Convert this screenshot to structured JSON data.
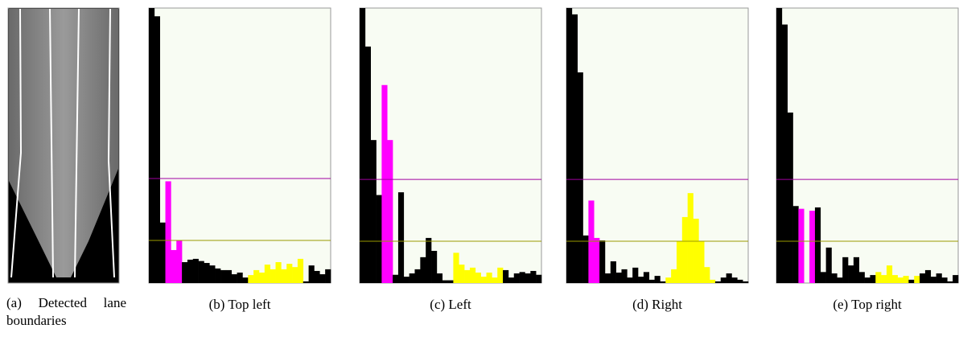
{
  "image_caption": "(a) Detected lane boundaries",
  "chart_data": [
    {
      "type": "histogram",
      "caption": "(b) Top left",
      "ylim": [
        0,
        100
      ],
      "values": [
        100,
        97,
        22,
        37,
        12,
        15.5,
        7.6,
        8.5,
        8.8,
        8,
        7.3,
        6.4,
        5.3,
        4.7,
        4.7,
        3.2,
        3.8,
        2,
        2.9,
        4.7,
        3.8,
        6.7,
        5,
        7.6,
        5,
        7,
        5.8,
        8.8,
        0.6,
        6.4,
        4.4,
        3.2,
        5
      ],
      "colors": [
        "#000000",
        "#000000",
        "#000000",
        "#ff00ff",
        "#ff00ff",
        "#ff00ff",
        "#000000",
        "#000000",
        "#000000",
        "#000000",
        "#000000",
        "#000000",
        "#000000",
        "#000000",
        "#000000",
        "#000000",
        "#000000",
        "#000000",
        "#ffff00",
        "#ffff00",
        "#ffff00",
        "#ffff00",
        "#ffff00",
        "#ffff00",
        "#ffff00",
        "#ffff00",
        "#ffff00",
        "#ffff00",
        "#000000",
        "#000000",
        "#000000",
        "#000000",
        "#000000"
      ],
      "thresholds": [
        {
          "value": 38,
          "color": "#a000a0"
        },
        {
          "value": 15.5,
          "color": "#9a9a00"
        }
      ]
    },
    {
      "type": "histogram",
      "caption": "(c) Left",
      "ylim": [
        0,
        100
      ],
      "values": [
        100,
        86,
        52,
        32,
        72,
        52,
        3,
        33,
        2.3,
        3.5,
        5,
        9.4,
        16.4,
        11.7,
        3.5,
        1,
        1,
        11,
        6.7,
        4.7,
        5.6,
        3.8,
        2.3,
        3.8,
        2,
        5.6,
        4.7,
        2,
        3.5,
        4,
        3.5,
        4.4,
        3
      ],
      "colors": [
        "#000000",
        "#000000",
        "#000000",
        "#000000",
        "#ff00ff",
        "#ff00ff",
        "#000000",
        "#000000",
        "#000000",
        "#000000",
        "#000000",
        "#000000",
        "#000000",
        "#000000",
        "#000000",
        "#000000",
        "#000000",
        "#ffff00",
        "#ffff00",
        "#ffff00",
        "#ffff00",
        "#ffff00",
        "#ffff00",
        "#ffff00",
        "#ffff00",
        "#ffff00",
        "#000000",
        "#000000",
        "#000000",
        "#000000",
        "#000000",
        "#000000",
        "#000000"
      ],
      "thresholds": [
        {
          "value": 37.7,
          "color": "#a000a0"
        },
        {
          "value": 15.2,
          "color": "#9a9a00"
        }
      ]
    },
    {
      "type": "histogram",
      "caption": "(d) Right",
      "ylim": [
        0,
        100
      ],
      "values": [
        100,
        97.7,
        76.6,
        17.3,
        30,
        16.4,
        15.5,
        3.5,
        7.9,
        3.8,
        5,
        2,
        5.6,
        2.3,
        4,
        1.2,
        2.6,
        0.6,
        2,
        5,
        15.2,
        24,
        32.7,
        23.4,
        15.2,
        5.8,
        1.2,
        0.6,
        2,
        3.5,
        2,
        1.2,
        0.6
      ],
      "colors": [
        "#000000",
        "#000000",
        "#000000",
        "#000000",
        "#ff00ff",
        "#ff00ff",
        "#000000",
        "#000000",
        "#000000",
        "#000000",
        "#000000",
        "#000000",
        "#000000",
        "#000000",
        "#000000",
        "#000000",
        "#000000",
        "#000000",
        "#ffff00",
        "#ffff00",
        "#ffff00",
        "#ffff00",
        "#ffff00",
        "#ffff00",
        "#ffff00",
        "#ffff00",
        "#ffff00",
        "#000000",
        "#000000",
        "#000000",
        "#000000",
        "#000000",
        "#000000"
      ],
      "thresholds": [
        {
          "value": 37.7,
          "color": "#a000a0"
        },
        {
          "value": 15.2,
          "color": "#9a9a00"
        }
      ]
    },
    {
      "type": "histogram",
      "caption": "(e) Top right",
      "ylim": [
        0,
        100
      ],
      "values": [
        100,
        94,
        62,
        28,
        27,
        null,
        26.3,
        27.5,
        4,
        12.9,
        3.5,
        2,
        9.4,
        6.4,
        9.4,
        4,
        2,
        2.9,
        4,
        2.9,
        6.4,
        2.9,
        2,
        2.6,
        1.2,
        2.6,
        3.5,
        4.7,
        2.3,
        3.5,
        2,
        0.6,
        2.9
      ],
      "colors": [
        "#000000",
        "#000000",
        "#000000",
        "#000000",
        "#ff00ff",
        "#ffffff",
        "#ff00ff",
        "#000000",
        "#000000",
        "#000000",
        "#000000",
        "#000000",
        "#000000",
        "#000000",
        "#000000",
        "#000000",
        "#000000",
        "#000000",
        "#ffff00",
        "#ffff00",
        "#ffff00",
        "#ffff00",
        "#ffff00",
        "#ffff00",
        "#000000",
        "#ffff00",
        "#000000",
        "#000000",
        "#000000",
        "#000000",
        "#000000",
        "#000000",
        "#000000"
      ],
      "thresholds": [
        {
          "value": 37.7,
          "color": "#a000a0"
        },
        {
          "value": 15.2,
          "color": "#9a9a00"
        }
      ]
    }
  ]
}
